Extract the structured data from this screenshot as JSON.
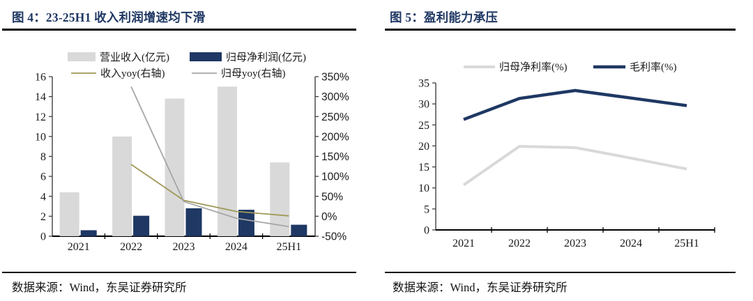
{
  "colors": {
    "accent_navy": "#1f3864",
    "bar_gray": "#d9d9d9",
    "line_olive": "#9e9857",
    "line_gray": "#a6a6a6",
    "line_light_gray": "#d9d9d9",
    "axis": "#404040",
    "axis_bottom": "#000000",
    "text": "#1a1a1a"
  },
  "panels": [
    {
      "title": "图 4：23-25H1 收入利润增速均下滑",
      "source": "数据来源：Wind，东吴证券研究所"
    },
    {
      "title": "图 5：盈利能力承压",
      "source": "数据来源：Wind，东吴证券研究所"
    }
  ],
  "chart_data": [
    {
      "type": "bar",
      "subtype": "dual-axis bar+line",
      "title": "图 4：23-25H1 收入利润增速均下滑",
      "categories": [
        "2021",
        "2022",
        "2023",
        "2024",
        "25H1"
      ],
      "bar_series": [
        {
          "name": "营业收入(亿元)",
          "axis": "left",
          "color": "#d9d9d9",
          "values": [
            4.4,
            10.0,
            13.8,
            15.0,
            7.4
          ]
        },
        {
          "name": "归母净利润(亿元)",
          "axis": "left",
          "color": "#1f3864",
          "values": [
            0.6,
            2.05,
            2.8,
            2.65,
            1.15
          ]
        }
      ],
      "line_series": [
        {
          "name": "收入yoy(右轴)",
          "axis": "right",
          "color": "#9e9857",
          "values": [
            null,
            130,
            40,
            12,
            1
          ]
        },
        {
          "name": "归母yoy(右轴)",
          "axis": "right",
          "color": "#a6a6a6",
          "values": [
            null,
            325,
            37,
            -5,
            -26
          ]
        }
      ],
      "left_axis": {
        "min": 0,
        "max": 16,
        "step": 2,
        "ticks": [
          "0",
          "2",
          "4",
          "6",
          "8",
          "10",
          "12",
          "14",
          "16"
        ]
      },
      "right_axis": {
        "min": -50,
        "max": 350,
        "step": 50,
        "ticks": [
          "-50%",
          "0%",
          "50%",
          "100%",
          "150%",
          "200%",
          "250%",
          "300%",
          "350%"
        ]
      },
      "grid": false,
      "legend_position": "top"
    },
    {
      "type": "line",
      "title": "图 5：盈利能力承压",
      "categories": [
        "2021",
        "2022",
        "2023",
        "2024",
        "25H1"
      ],
      "series": [
        {
          "name": "归母净利率(%)",
          "color": "#d9d9d9",
          "values": [
            10.7,
            19.9,
            19.6,
            17.1,
            14.5
          ]
        },
        {
          "name": "毛利率(%)",
          "color": "#1f3864",
          "values": [
            26.3,
            31.3,
            33.2,
            31.4,
            29.6
          ]
        }
      ],
      "y_axis": {
        "min": 0,
        "max": 35,
        "step": 5,
        "ticks": [
          "0",
          "5",
          "10",
          "15",
          "20",
          "25",
          "30",
          "35"
        ]
      },
      "grid": false,
      "legend_position": "top"
    }
  ]
}
